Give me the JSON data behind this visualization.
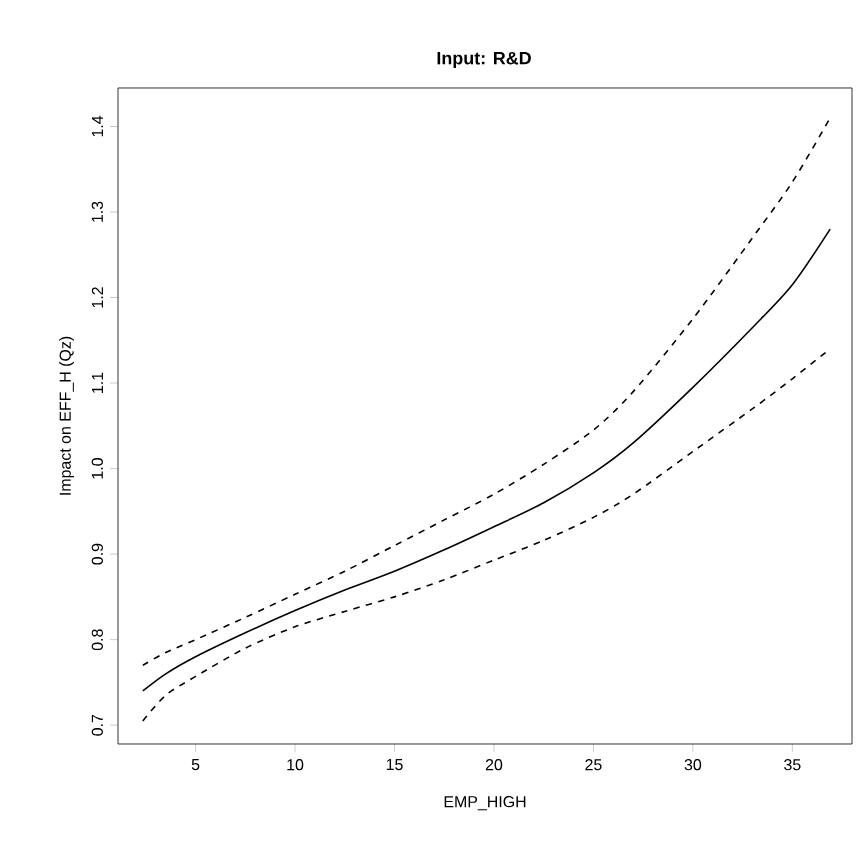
{
  "chart_data": {
    "type": "line",
    "title": "Input: R&D",
    "xlabel": "EMP_HIGH",
    "ylabel": "Impact on EFF_H (Qz)",
    "xlim": [
      1.1,
      38
    ],
    "ylim": [
      0.678,
      1.445
    ],
    "xticks": [
      5,
      10,
      15,
      20,
      25,
      30,
      35
    ],
    "yticks": [
      0.7,
      0.8,
      0.9,
      {
        "value": 1,
        "label": "1.0"
      },
      1.1,
      1.2,
      1.3,
      1.4
    ],
    "grid": false,
    "series": [
      {
        "color": "#000000",
        "line_style": "solid",
        "x": [
          2.35,
          3.5,
          5,
          7.5,
          10,
          12.5,
          15,
          17.5,
          20,
          22.5,
          25,
          27,
          30,
          33,
          35,
          36.9
        ],
        "values": [
          0.74,
          0.76,
          0.78,
          0.808,
          0.834,
          0.858,
          0.88,
          0.905,
          0.932,
          0.96,
          0.995,
          1.03,
          1.095,
          1.165,
          1.215,
          1.28
        ]
      },
      {
        "color": "#000000",
        "line_style": "dashed",
        "x": [
          2.35,
          3.5,
          5,
          7.5,
          10,
          12.5,
          15,
          17.5,
          20,
          22.5,
          25,
          27,
          30,
          33,
          35,
          36.9
        ],
        "values": [
          0.77,
          0.785,
          0.8,
          0.826,
          0.853,
          0.88,
          0.91,
          0.94,
          0.97,
          1.005,
          1.045,
          1.09,
          1.175,
          1.27,
          1.335,
          1.41
        ]
      },
      {
        "color": "#000000",
        "line_style": "dashed",
        "x": [
          2.35,
          3.5,
          5,
          7.5,
          10,
          12.5,
          15,
          17.5,
          20,
          22.5,
          25,
          27,
          30,
          33,
          35,
          36.9
        ],
        "values": [
          0.705,
          0.735,
          0.757,
          0.79,
          0.815,
          0.833,
          0.85,
          0.87,
          0.893,
          0.916,
          0.943,
          0.97,
          1.02,
          1.07,
          1.105,
          1.14
        ]
      }
    ]
  }
}
